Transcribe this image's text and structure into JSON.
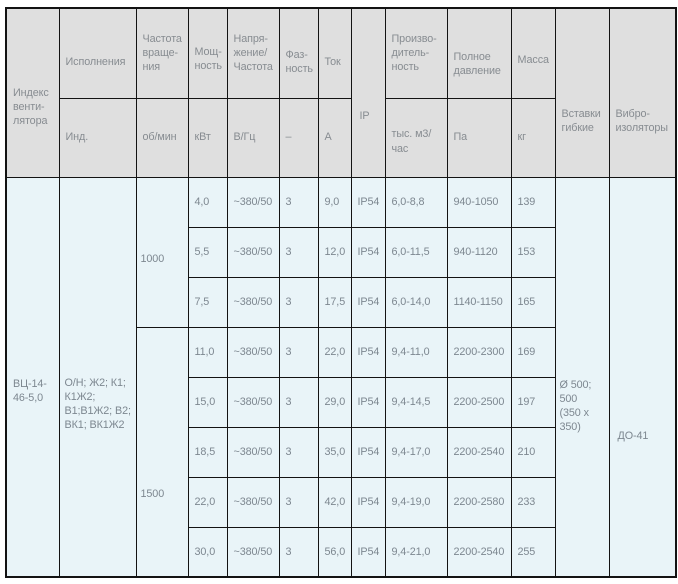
{
  "table": {
    "header": {
      "fan_index": "Индекс\nвенти-\nлятора",
      "versions": "Исполнения",
      "versions_unit": "Инд.",
      "speed": "Частота\nвраще-\nния",
      "speed_unit": "об/мин",
      "power": "Мощ-\nность",
      "power_unit": "кВт",
      "voltage": "Напря-\nжение/\nЧастота",
      "voltage_unit": "В/Гц",
      "phase": "Фаз-\nность",
      "phase_unit": "–",
      "current": "Ток",
      "current_unit": "А",
      "ip": "IP",
      "capacity": "Произво-\nдитель-\nность",
      "capacity_unit": "тыс. м3/час",
      "pressure": "Полное\nдавление",
      "pressure_unit": "Па",
      "mass": "Масса",
      "mass_unit": "кг",
      "inserts": "Вставки\nгибкие",
      "vibro": "Вибро-\nизоляторы"
    },
    "fan_index_value": "ВЦ-14-\n46-5,0",
    "versions_value": "О/Н; Ж2; К1;\nК1Ж2;\nВ1;В1Ж2; В2;\nВК1; ВК1Ж2",
    "inserts_value": "Ø 500; 500\n(350 x 350)",
    "vibro_value": "ДО-41",
    "speed_groups": [
      {
        "label": "1000",
        "start": 0,
        "span": 3
      },
      {
        "label": "1500",
        "start": 3,
        "span": 5
      }
    ],
    "rows": [
      [
        "4,0",
        "~380/50",
        "3",
        "9,0",
        "IP54",
        "6,0-8,8",
        "940-1050",
        "139"
      ],
      [
        "5,5",
        "~380/50",
        "3",
        "12,0",
        "IP54",
        "6,0-11,5",
        "940-1120",
        "153"
      ],
      [
        "7,5",
        "~380/50",
        "3",
        "17,5",
        "IP54",
        "6,0-14,0",
        "1140-1150",
        "165"
      ],
      [
        "11,0",
        "~380/50",
        "3",
        "22,0",
        "IP54",
        "9,4-11,0",
        "2200-2300",
        "169"
      ],
      [
        "15,0",
        "~380/50",
        "3",
        "29,0",
        "IP54",
        "9,4-14,5",
        "2200-2500",
        "197"
      ],
      [
        "18,5",
        "~380/50",
        "3",
        "35,0",
        "IP54",
        "9,4-17,0",
        "2200-2540",
        "210"
      ],
      [
        "22,0",
        "~380/50",
        "3",
        "42,0",
        "IP54",
        "9,4-19,0",
        "2200-2580",
        "233"
      ],
      [
        "30,0",
        "~380/50",
        "3",
        "56,0",
        "IP54",
        "9,4-21,0",
        "2200-2540",
        "255"
      ]
    ]
  },
  "colors": {
    "header_bg": "#dfdfdf",
    "body_bg": "#e9f4f8",
    "header_text": "#878c91",
    "body_text": "#7d8790",
    "border": "#131313"
  }
}
